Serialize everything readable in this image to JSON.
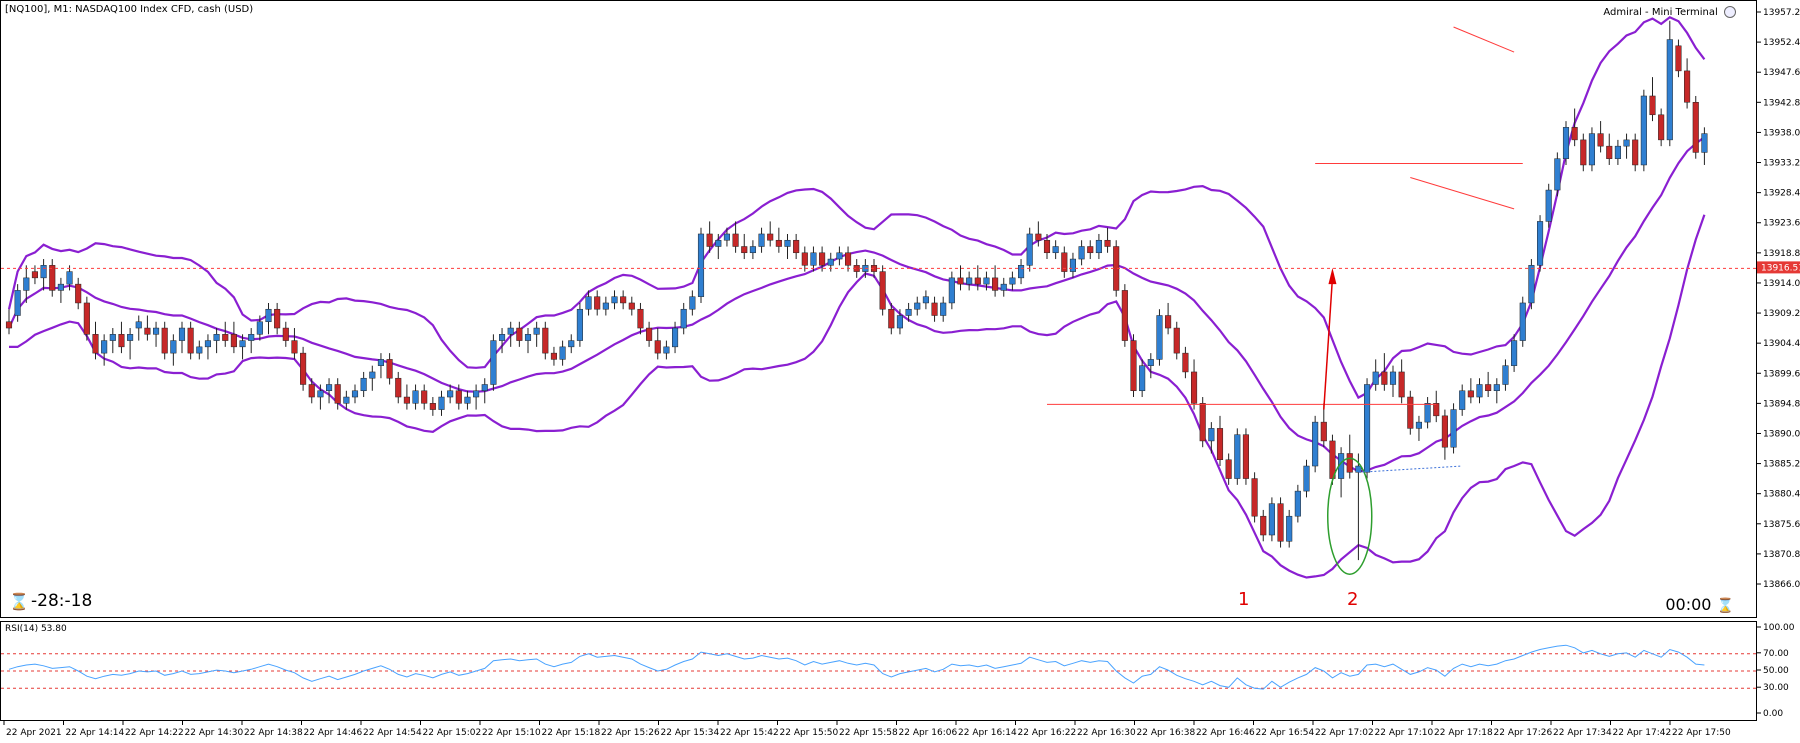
{
  "chart": {
    "title": "[NQ100], M1:  NASDAQ100 Index CFD, cash (USD)",
    "terminal_label": "Admiral - Mini Terminal",
    "countdown_left": "-28:-18",
    "countdown_right": "00:00",
    "markers": [
      "1",
      "2"
    ],
    "current_price": "13916.51",
    "price_ticks": [
      "13957.23",
      "13952.43",
      "13947.63",
      "13942.83",
      "13938.03",
      "13933.23",
      "13928.43",
      "13923.63",
      "13918.83",
      "13914.03",
      "13909.23",
      "13904.43",
      "13899.63",
      "13894.83",
      "13890.03",
      "13885.23",
      "13880.43",
      "13875.63",
      "13870.83",
      "13866.03"
    ],
    "time_ticks": [
      "22 Apr 2021",
      "22 Apr 14:14",
      "22 Apr 14:22",
      "22 Apr 14:30",
      "22 Apr 14:38",
      "22 Apr 14:46",
      "22 Apr 14:54",
      "22 Apr 15:02",
      "22 Apr 15:10",
      "22 Apr 15:18",
      "22 Apr 15:26",
      "22 Apr 15:34",
      "22 Apr 15:42",
      "22 Apr 15:50",
      "22 Apr 15:58",
      "22 Apr 16:06",
      "22 Apr 16:14",
      "22 Apr 16:22",
      "22 Apr 16:30",
      "22 Apr 16:38",
      "22 Apr 16:46",
      "22 Apr 16:54",
      "22 Apr 17:02",
      "22 Apr 17:10",
      "22 Apr 17:18",
      "22 Apr 17:26",
      "22 Apr 17:34",
      "22 Apr 17:42",
      "22 Apr 17:50"
    ]
  },
  "rsi": {
    "label": "RSI(14) 53.80",
    "ticks": [
      "100.00",
      "70.00",
      "50.00",
      "30.00",
      "0.00"
    ]
  },
  "colors": {
    "bull": "#2f7fd1",
    "bear": "#c62828",
    "bands": "#8a1fd1",
    "level": "#ff3b3b",
    "rsi_line": "#4aa3ff",
    "green_ellipse": "#2e9e2e"
  },
  "chart_data": {
    "type": "candlestick",
    "candles": [
      [
        13908,
        13910,
        13906,
        13907
      ],
      [
        13909,
        13914,
        13908,
        13913
      ],
      [
        13913,
        13917,
        13911,
        13915
      ],
      [
        13916,
        13917,
        13914,
        13915
      ],
      [
        13915,
        13918,
        13913,
        13917
      ],
      [
        13917,
        13918,
        13912,
        13913
      ],
      [
        13913,
        13915,
        13911,
        13914
      ],
      [
        13914,
        13917,
        13913,
        13916
      ],
      [
        13914,
        13915,
        13910,
        13911
      ],
      [
        13911,
        13912,
        13905,
        13906
      ],
      [
        13906,
        13908,
        13902,
        13903
      ],
      [
        13903,
        13906,
        13901,
        13905
      ],
      [
        13905,
        13907,
        13903,
        13906
      ],
      [
        13906,
        13908,
        13903,
        13904
      ],
      [
        13905,
        13907,
        13902,
        13906
      ],
      [
        13907,
        13909,
        13905,
        13908
      ],
      [
        13907,
        13909,
        13905,
        13906
      ],
      [
        13906,
        13908,
        13904,
        13907
      ],
      [
        13907,
        13908,
        13902,
        13903
      ],
      [
        13903,
        13906,
        13901,
        13905
      ],
      [
        13905,
        13908,
        13903,
        13907
      ],
      [
        13907,
        13908,
        13902,
        13903
      ],
      [
        13903,
        13905,
        13902,
        13904
      ],
      [
        13904,
        13906,
        13902,
        13905
      ],
      [
        13905,
        13907,
        13903,
        13906
      ],
      [
        13906,
        13908,
        13904,
        13905
      ],
      [
        13906,
        13908,
        13903,
        13904
      ],
      [
        13904,
        13906,
        13902,
        13905
      ],
      [
        13905,
        13907,
        13903,
        13906
      ],
      [
        13906,
        13909,
        13905,
        13908
      ],
      [
        13908,
        13911,
        13906,
        13910
      ],
      [
        13910,
        13911,
        13906,
        13907
      ],
      [
        13907,
        13908,
        13904,
        13905
      ],
      [
        13905,
        13907,
        13902,
        13903
      ],
      [
        13903,
        13904,
        13897,
        13898
      ],
      [
        13898,
        13899,
        13895,
        13896
      ],
      [
        13896,
        13898,
        13894,
        13897
      ],
      [
        13897,
        13899,
        13895,
        13898
      ],
      [
        13898,
        13899,
        13894,
        13895
      ],
      [
        13895,
        13897,
        13894,
        13896
      ],
      [
        13896,
        13898,
        13895,
        13897
      ],
      [
        13897,
        13900,
        13896,
        13899
      ],
      [
        13899,
        13901,
        13897,
        13900
      ],
      [
        13901,
        13903,
        13899,
        13902
      ],
      [
        13902,
        13903,
        13898,
        13899
      ],
      [
        13899,
        13900,
        13895,
        13896
      ],
      [
        13896,
        13898,
        13894,
        13895
      ],
      [
        13895,
        13898,
        13894,
        13897
      ],
      [
        13897,
        13898,
        13894,
        13895
      ],
      [
        13895,
        13896,
        13893,
        13894
      ],
      [
        13894,
        13897,
        13893,
        13896
      ],
      [
        13896,
        13898,
        13895,
        13897
      ],
      [
        13897,
        13898,
        13894,
        13895
      ],
      [
        13895,
        13897,
        13894,
        13896
      ],
      [
        13896,
        13898,
        13894,
        13897
      ],
      [
        13897,
        13899,
        13895,
        13898
      ],
      [
        13898,
        13906,
        13897,
        13905
      ],
      [
        13905,
        13907,
        13903,
        13906
      ],
      [
        13906,
        13908,
        13904,
        13907
      ],
      [
        13907,
        13908,
        13904,
        13905
      ],
      [
        13905,
        13907,
        13903,
        13906
      ],
      [
        13906,
        13908,
        13904,
        13907
      ],
      [
        13907,
        13908,
        13902,
        13903
      ],
      [
        13903,
        13904,
        13901,
        13902
      ],
      [
        13902,
        13905,
        13901,
        13904
      ],
      [
        13904,
        13906,
        13903,
        13905
      ],
      [
        13905,
        13911,
        13904,
        13910
      ],
      [
        13910,
        13913,
        13909,
        13912
      ],
      [
        13912,
        13913,
        13909,
        13910
      ],
      [
        13910,
        13912,
        13909,
        13911
      ],
      [
        13911,
        13913,
        13910,
        13912
      ],
      [
        13912,
        13913,
        13910,
        13911
      ],
      [
        13911,
        13912,
        13909,
        13910
      ],
      [
        13910,
        13911,
        13906,
        13907
      ],
      [
        13907,
        13908,
        13904,
        13905
      ],
      [
        13905,
        13907,
        13902,
        13903
      ],
      [
        13903,
        13905,
        13902,
        13904
      ],
      [
        13904,
        13908,
        13903,
        13907
      ],
      [
        13907,
        13911,
        13906,
        13910
      ],
      [
        13910,
        13913,
        13909,
        13912
      ],
      [
        13912,
        13923,
        13911,
        13922
      ],
      [
        13922,
        13924,
        13919,
        13920
      ],
      [
        13920,
        13922,
        13918,
        13921
      ],
      [
        13921,
        13923,
        13920,
        13922
      ],
      [
        13922,
        13924,
        13919,
        13920
      ],
      [
        13920,
        13922,
        13918,
        13919
      ],
      [
        13919,
        13921,
        13918,
        13920
      ],
      [
        13920,
        13923,
        13919,
        13922
      ],
      [
        13922,
        13924,
        13920,
        13921
      ],
      [
        13921,
        13923,
        13919,
        13920
      ],
      [
        13920,
        13922,
        13918,
        13921
      ],
      [
        13921,
        13922,
        13918,
        13919
      ],
      [
        13919,
        13920,
        13916,
        13917
      ],
      [
        13917,
        13920,
        13916,
        13919
      ],
      [
        13919,
        13920,
        13916,
        13917
      ],
      [
        13917,
        13919,
        13916,
        13918
      ],
      [
        13918,
        13920,
        13917,
        13919
      ],
      [
        13919,
        13920,
        13916,
        13917
      ],
      [
        13917,
        13918,
        13915,
        13916
      ],
      [
        13916,
        13918,
        13915,
        13917
      ],
      [
        13917,
        13918,
        13915,
        13916
      ],
      [
        13916,
        13917,
        13909,
        13910
      ],
      [
        13910,
        13911,
        13906,
        13907
      ],
      [
        13907,
        13910,
        13906,
        13909
      ],
      [
        13909,
        13911,
        13908,
        13910
      ],
      [
        13910,
        13912,
        13909,
        13911
      ],
      [
        13911,
        13913,
        13910,
        13912
      ],
      [
        13911,
        13912,
        13908,
        13909
      ],
      [
        13909,
        13912,
        13908,
        13911
      ],
      [
        13911,
        13916,
        13910,
        13915
      ],
      [
        13915,
        13917,
        13913,
        13914
      ],
      [
        13914,
        13916,
        13913,
        13915
      ],
      [
        13915,
        13917,
        13913,
        13914
      ],
      [
        13914,
        13916,
        13913,
        13915
      ],
      [
        13915,
        13917,
        13912,
        13913
      ],
      [
        13913,
        13915,
        13912,
        13914
      ],
      [
        13914,
        13916,
        13913,
        13915
      ],
      [
        13915,
        13918,
        13914,
        13917
      ],
      [
        13917,
        13923,
        13916,
        13922
      ],
      [
        13922,
        13924,
        13920,
        13921
      ],
      [
        13921,
        13922,
        13918,
        13919
      ],
      [
        13919,
        13921,
        13918,
        13920
      ],
      [
        13919,
        13920,
        13915,
        13916
      ],
      [
        13916,
        13919,
        13915,
        13918
      ],
      [
        13918,
        13921,
        13917,
        13920
      ],
      [
        13920,
        13921,
        13918,
        13919
      ],
      [
        13919,
        13922,
        13918,
        13921
      ],
      [
        13921,
        13923,
        13919,
        13920
      ],
      [
        13920,
        13921,
        13912,
        13913
      ],
      [
        13913,
        13914,
        13904,
        13905
      ],
      [
        13905,
        13906,
        13896,
        13897
      ],
      [
        13897,
        13902,
        13896,
        13901
      ],
      [
        13901,
        13903,
        13899,
        13902
      ],
      [
        13902,
        13910,
        13901,
        13909
      ],
      [
        13909,
        13911,
        13906,
        13907
      ],
      [
        13907,
        13908,
        13902,
        13903
      ],
      [
        13903,
        13904,
        13899,
        13900
      ],
      [
        13900,
        13902,
        13894,
        13895
      ],
      [
        13895,
        13896,
        13888,
        13889
      ],
      [
        13889,
        13892,
        13887,
        13891
      ],
      [
        13891,
        13893,
        13885,
        13886
      ],
      [
        13886,
        13887,
        13882,
        13883
      ],
      [
        13883,
        13891,
        13882,
        13890
      ],
      [
        13890,
        13891,
        13882,
        13883
      ],
      [
        13883,
        13884,
        13876,
        13877
      ],
      [
        13877,
        13878,
        13873,
        13874
      ],
      [
        13874,
        13880,
        13873,
        13879
      ],
      [
        13879,
        13880,
        13872,
        13873
      ],
      [
        13873,
        13878,
        13872,
        13877
      ],
      [
        13877,
        13882,
        13876,
        13881
      ],
      [
        13881,
        13886,
        13880,
        13885
      ],
      [
        13885,
        13893,
        13884,
        13892
      ],
      [
        13892,
        13895,
        13888,
        13889
      ],
      [
        13889,
        13890,
        13882,
        13883
      ],
      [
        13883,
        13888,
        13880,
        13887
      ],
      [
        13887,
        13890,
        13883,
        13884
      ],
      [
        13884,
        13887,
        13870,
        13885
      ],
      [
        13884,
        13899,
        13883,
        13898
      ],
      [
        13898,
        13902,
        13897,
        13900
      ],
      [
        13900,
        13903,
        13897,
        13898
      ],
      [
        13898,
        13901,
        13896,
        13900
      ],
      [
        13900,
        13902,
        13895,
        13896
      ],
      [
        13896,
        13897,
        13890,
        13891
      ],
      [
        13891,
        13893,
        13889,
        13892
      ],
      [
        13892,
        13896,
        13891,
        13895
      ],
      [
        13895,
        13897,
        13892,
        13893
      ],
      [
        13893,
        13894,
        13886,
        13888
      ],
      [
        13888,
        13895,
        13887,
        13894
      ],
      [
        13894,
        13898,
        13893,
        13897
      ],
      [
        13897,
        13899,
        13895,
        13896
      ],
      [
        13896,
        13899,
        13895,
        13898
      ],
      [
        13898,
        13900,
        13896,
        13897
      ],
      [
        13897,
        13899,
        13895,
        13898
      ],
      [
        13898,
        13902,
        13897,
        13901
      ],
      [
        13901,
        13906,
        13900,
        13905
      ],
      [
        13905,
        13912,
        13904,
        13911
      ],
      [
        13911,
        13918,
        13910,
        13917
      ],
      [
        13917,
        13925,
        13916,
        13924
      ],
      [
        13924,
        13930,
        13923,
        13929
      ],
      [
        13929,
        13935,
        13928,
        13934
      ],
      [
        13934,
        13940,
        13933,
        13939
      ],
      [
        13939,
        13942,
        13936,
        13937
      ],
      [
        13937,
        13938,
        13932,
        13933
      ],
      [
        13933,
        13939,
        13932,
        13938
      ],
      [
        13938,
        13940,
        13935,
        13936
      ],
      [
        13936,
        13938,
        13933,
        13934
      ],
      [
        13934,
        13937,
        13933,
        13936
      ],
      [
        13936,
        13938,
        13934,
        13937
      ],
      [
        13937,
        13938,
        13932,
        13933
      ],
      [
        13933,
        13945,
        13932,
        13944
      ],
      [
        13944,
        13947,
        13940,
        13941
      ],
      [
        13941,
        13942,
        13936,
        13937
      ],
      [
        13937,
        13956,
        13936,
        13953
      ],
      [
        13952,
        13953,
        13947,
        13948
      ],
      [
        13948,
        13950,
        13942,
        13943
      ],
      [
        13943,
        13944,
        13934,
        13935
      ],
      [
        13935,
        13939,
        13933,
        13938
      ]
    ],
    "bollinger": {
      "period": 20,
      "deviation": 2
    },
    "horizontal_levels": [
      13916.51,
      13894.83,
      13933.23
    ],
    "rsi_values": [
      52,
      55,
      57,
      58,
      56,
      53,
      54,
      55,
      50,
      44,
      41,
      44,
      46,
      45,
      47,
      50,
      49,
      50,
      45,
      47,
      50,
      46,
      47,
      49,
      51,
      50,
      48,
      50,
      52,
      55,
      58,
      55,
      51,
      48,
      42,
      38,
      41,
      44,
      40,
      43,
      46,
      50,
      53,
      56,
      52,
      46,
      43,
      47,
      45,
      42,
      46,
      49,
      45,
      47,
      50,
      53,
      62,
      63,
      64,
      62,
      63,
      64,
      58,
      55,
      58,
      60,
      67,
      70,
      66,
      67,
      68,
      66,
      64,
      58,
      54,
      50,
      52,
      57,
      61,
      64,
      72,
      70,
      68,
      70,
      67,
      64,
      65,
      68,
      66,
      64,
      65,
      62,
      57,
      61,
      58,
      60,
      62,
      59,
      57,
      59,
      57,
      47,
      43,
      47,
      49,
      51,
      53,
      49,
      52,
      58,
      56,
      57,
      55,
      57,
      53,
      55,
      57,
      59,
      66,
      63,
      60,
      61,
      56,
      59,
      62,
      60,
      62,
      61,
      50,
      42,
      36,
      44,
      46,
      55,
      51,
      45,
      41,
      38,
      34,
      38,
      33,
      31,
      42,
      34,
      30,
      29,
      38,
      31,
      37,
      42,
      46,
      54,
      50,
      42,
      48,
      44,
      46,
      57,
      58,
      55,
      58,
      52,
      46,
      49,
      54,
      51,
      44,
      53,
      58,
      55,
      58,
      56,
      58,
      62,
      64,
      68,
      72,
      75,
      77,
      79,
      80,
      77,
      71,
      74,
      70,
      67,
      70,
      71,
      66,
      74,
      70,
      66,
      75,
      72,
      66,
      58,
      57
    ]
  }
}
